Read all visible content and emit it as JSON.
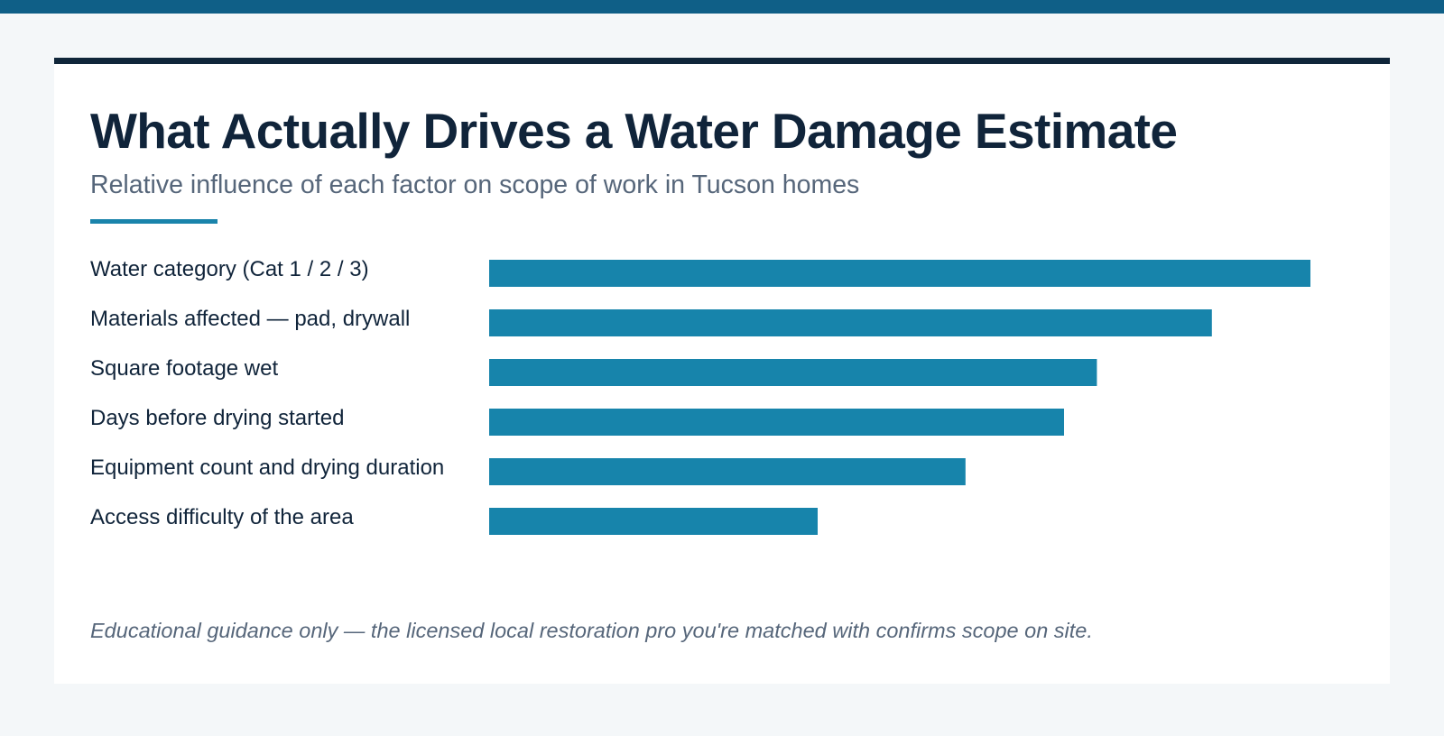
{
  "title": "What Actually Drives a Water Damage Estimate",
  "subtitle": "Relative influence of each factor on scope of work in Tucson homes",
  "footnote": "Educational guidance only — the licensed local restoration pro you're matched with confirms scope on site.",
  "colors": {
    "top_band": "#0f5f87",
    "card_rule": "#10263a",
    "accent_rule": "#1a84ab",
    "bar": "#1784ab",
    "title_text": "#10243a",
    "muted_text": "#56667a",
    "page_background": "#f4f7f9"
  },
  "chart_data": {
    "type": "bar",
    "orientation": "horizontal",
    "categories": [
      "Water category (Cat 1 / 2 / 3)",
      "Materials affected — pad, drywall",
      "Square footage wet",
      "Days before drying started",
      "Equipment count and drying duration",
      "Access difficulty of the area"
    ],
    "values": [
      100,
      88,
      74,
      70,
      58,
      40
    ],
    "xlim": [
      0,
      100
    ],
    "title": "What Actually Drives a Water Damage Estimate",
    "subtitle": "Relative influence of each factor on scope of work in Tucson homes",
    "xlabel": "",
    "ylabel": "",
    "grid": false,
    "legend": "none"
  }
}
